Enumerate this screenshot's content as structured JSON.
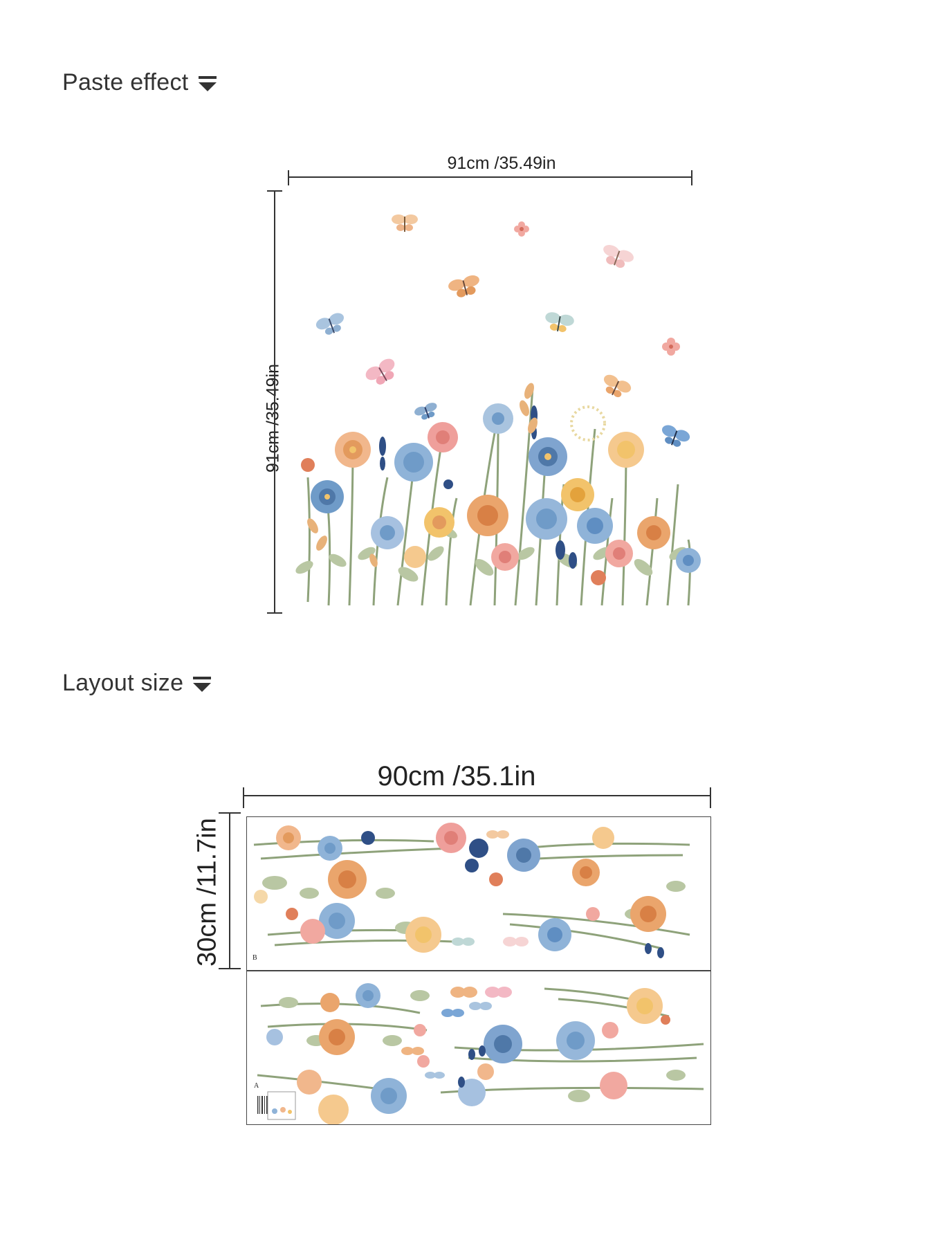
{
  "sections": {
    "paste_effect": {
      "label": "Paste effect"
    },
    "layout_size": {
      "label": "Layout size"
    }
  },
  "paste_effect_dims": {
    "width_label": "91cm /35.49in",
    "height_label": "91cm /35.49in"
  },
  "layout_dims": {
    "width_label": "90cm /35.1in",
    "height_label": "30cm /11.7in"
  },
  "sheet_labels": {
    "top": "B",
    "bottom": "A"
  },
  "colors": {
    "line": "#333333",
    "blue": "#6f9bc8",
    "dark_blue": "#2f4f86",
    "orange": "#e39a5d",
    "peach": "#f1b78c",
    "pink": "#ef9f9b",
    "yellow": "#f2c36b",
    "green": "#8ea27a",
    "light_green": "#b9c7a3"
  }
}
